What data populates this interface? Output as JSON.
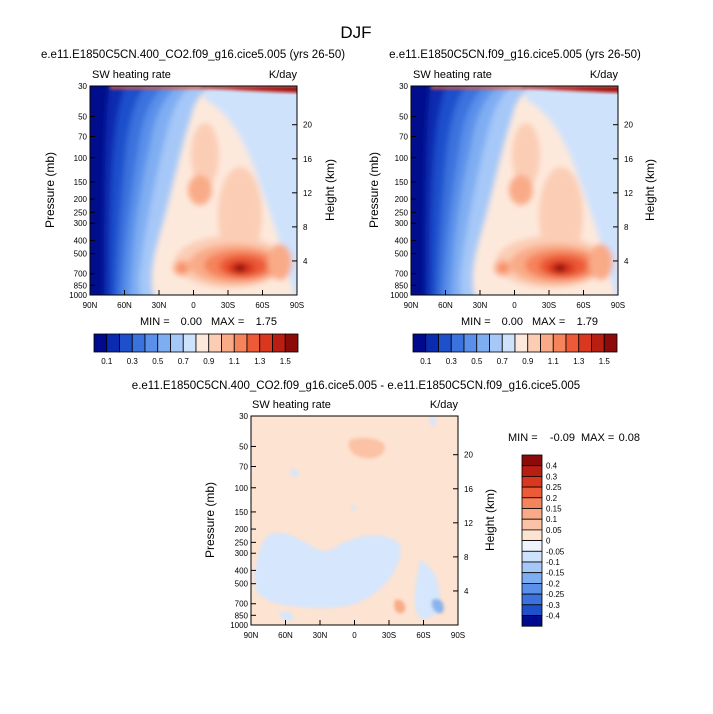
{
  "figure_title": "DJF",
  "colors": {
    "blues": [
      "#000a8c",
      "#0a2bb0",
      "#1f50cc",
      "#3b72dd",
      "#5a90ea",
      "#7fadf2",
      "#a6c8f8",
      "#cfe2fc"
    ],
    "reds": [
      "#fde9dc",
      "#fbcdb5",
      "#f9ab88",
      "#f5835c",
      "#ec5a38",
      "#d9371f",
      "#b81f12",
      "#8c0a0a"
    ],
    "diff_neutral": "#fde3d1",
    "diff_neg": "#d6e6fc"
  },
  "chart_data": [
    {
      "type": "heatmap",
      "title": "e.e11.E1850C5CN.400_CO2.f09_g16.cice5.005 (yrs 26-50)",
      "left_label": "SW heating rate",
      "right_label": "K/day",
      "ylabel": "Pressure (mb)",
      "ylabel2": "Height (km)",
      "x_ticks": [
        "90N",
        "60N",
        "30N",
        "0",
        "30S",
        "60S",
        "90S"
      ],
      "y_ticks": [
        "30",
        "50",
        "70",
        "100",
        "150",
        "200",
        "250",
        "300",
        "400",
        "500",
        "700",
        "850",
        "1000"
      ],
      "height_ticks": [
        "20",
        "16",
        "12",
        "8",
        "4"
      ],
      "min_label": "MIN =",
      "min_value": "0.00",
      "max_label": "MAX =",
      "max_value": "1.75",
      "colorbar_labels": [
        "0.1",
        "0.3",
        "0.5",
        "0.7",
        "0.9",
        "1.1",
        "1.3",
        "1.5"
      ]
    },
    {
      "type": "heatmap",
      "title": "e.e11.E1850C5CN.f09_g16.cice5.005 (yrs 26-50)",
      "left_label": "SW heating rate",
      "right_label": "K/day",
      "ylabel": "Pressure (mb)",
      "ylabel2": "Height (km)",
      "x_ticks": [
        "90N",
        "60N",
        "30N",
        "0",
        "30S",
        "60S",
        "90S"
      ],
      "y_ticks": [
        "30",
        "50",
        "70",
        "100",
        "150",
        "200",
        "250",
        "300",
        "400",
        "500",
        "700",
        "850",
        "1000"
      ],
      "height_ticks": [
        "20",
        "16",
        "12",
        "8",
        "4"
      ],
      "min_label": "MIN =",
      "min_value": "0.00",
      "max_label": "MAX =",
      "max_value": "1.79",
      "colorbar_labels": [
        "0.1",
        "0.3",
        "0.5",
        "0.7",
        "0.9",
        "1.1",
        "1.3",
        "1.5"
      ]
    },
    {
      "type": "heatmap",
      "title": "e.e11.E1850C5CN.400_CO2.f09_g16.cice5.005 - e.e11.E1850C5CN.f09_g16.cice5.005",
      "left_label": "SW heating rate",
      "right_label": "K/day",
      "ylabel": "Pressure (mb)",
      "ylabel2": "Height (km)",
      "x_ticks": [
        "90N",
        "60N",
        "30N",
        "0",
        "30S",
        "60S",
        "90S"
      ],
      "y_ticks": [
        "30",
        "50",
        "70",
        "100",
        "150",
        "200",
        "250",
        "300",
        "400",
        "500",
        "700",
        "850",
        "1000"
      ],
      "height_ticks": [
        "20",
        "16",
        "12",
        "8",
        "4"
      ],
      "min_label": "MIN =",
      "min_value": "-0.09",
      "max_label": "MAX =",
      "max_value": "0.08",
      "colorbar_labels": [
        "0.4",
        "0.3",
        "0.25",
        "0.2",
        "0.15",
        "0.1",
        "0.05",
        "0",
        "-0.05",
        "-0.1",
        "-0.15",
        "-0.2",
        "-0.25",
        "-0.3",
        "-0.4"
      ]
    }
  ]
}
